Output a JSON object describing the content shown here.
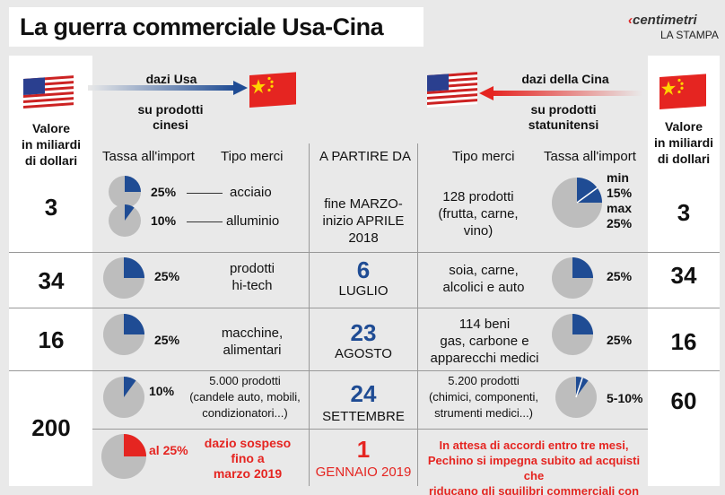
{
  "title": "La guerra commerciale Usa-Cina",
  "source": {
    "brand": "centimetri",
    "publisher": "LA STAMPA"
  },
  "colors": {
    "us_blue": "#1f4c94",
    "china_red": "#e52521",
    "pie_grey": "#bdbdbd",
    "bg": "#e9e9e9"
  },
  "icons": {
    "us_flag": "us-flag-icon",
    "china_flag": "china-flag-icon"
  },
  "headers": {
    "left_value": "Valore\nin miliardi\ndi dollari",
    "right_value": "Valore\nin miliardi\ndi dollari",
    "left_flow_top": "dazi Usa",
    "left_flow_bottom": "su prodotti\ncinesi",
    "right_flow_top": "dazi della Cina",
    "right_flow_bottom": "su prodotti\nstatunitensi",
    "tassa_left": "Tassa all'import",
    "tipo_left": "Tipo merci",
    "date": "A PARTIRE DA",
    "tipo_right": "Tipo merci",
    "tassa_right": "Tassa all'import"
  },
  "chart_data": {
    "type": "table",
    "title": "La guerra commerciale Usa-Cina",
    "columns": [
      "Valore in miliardi di dollari (Usa)",
      "Tassa all'import (Usa)",
      "Tipo merci (Usa)",
      "A partire da",
      "Tipo merci (Cina)",
      "Tassa all'import (Cina)",
      "Valore in miliardi di dollari (Cina)"
    ],
    "rows": [
      {
        "us_value": "3",
        "us_tariffs": [
          {
            "rate_label": "25%",
            "fraction": 0.25,
            "goods": "acciaio"
          },
          {
            "rate_label": "10%",
            "fraction": 0.1,
            "goods": "alluminio"
          }
        ],
        "date_line1": "fine MARZO-\ninizio APRILE\n2018",
        "date_day": "",
        "date_month": "",
        "cn_goods": "128 prodotti\n(frutta, carne,\nvino)",
        "cn_rate_label": "min\n15%\nmax\n25%",
        "cn_fraction_min": 0.15,
        "cn_fraction_max": 0.25,
        "cn_value": "3"
      },
      {
        "us_value": "34",
        "us_rate_label": "25%",
        "us_fraction": 0.25,
        "us_goods": "prodotti\nhi-tech",
        "date_day": "6",
        "date_month": "LUGLIO",
        "cn_goods": "soia, carne,\nalcolici e auto",
        "cn_rate_label": "25%",
        "cn_fraction": 0.25,
        "cn_value": "34"
      },
      {
        "us_value": "16",
        "us_rate_label": "25%",
        "us_fraction": 0.25,
        "us_goods": "macchine,\nalimentari",
        "date_day": "23",
        "date_month": "AGOSTO",
        "cn_goods": "114 beni\ngas, carbone e\napparecchi medici",
        "cn_rate_label": "25%",
        "cn_fraction": 0.25,
        "cn_value": "16"
      },
      {
        "us_value": "200",
        "us_rate_label": "10%",
        "us_fraction": 0.1,
        "us_goods": "5.000 prodotti\n(candele auto, mobili,\ncondizionatori...)",
        "date_day": "24",
        "date_month": "SETTEMBRE",
        "cn_goods": "5.200 prodotti\n(chimici, componenti,\nstrumenti medici...)",
        "cn_rate_label": "5-10%",
        "cn_fraction_min": 0.05,
        "cn_fraction_max": 0.1,
        "cn_value": "60"
      },
      {
        "us_value": "200",
        "us_rate_label": "al 25%",
        "us_fraction": 0.25,
        "us_goods": "dazio sospeso\nfino a\nmarzo 2019",
        "date_day": "1",
        "date_month": "GENNAIO 2019",
        "cn_note": "In attesa di accordi entro tre mesi,\nPechino si impegna subito ad acquisti che\nriducano gli squilibri commerciali con gli Usa"
      }
    ]
  }
}
